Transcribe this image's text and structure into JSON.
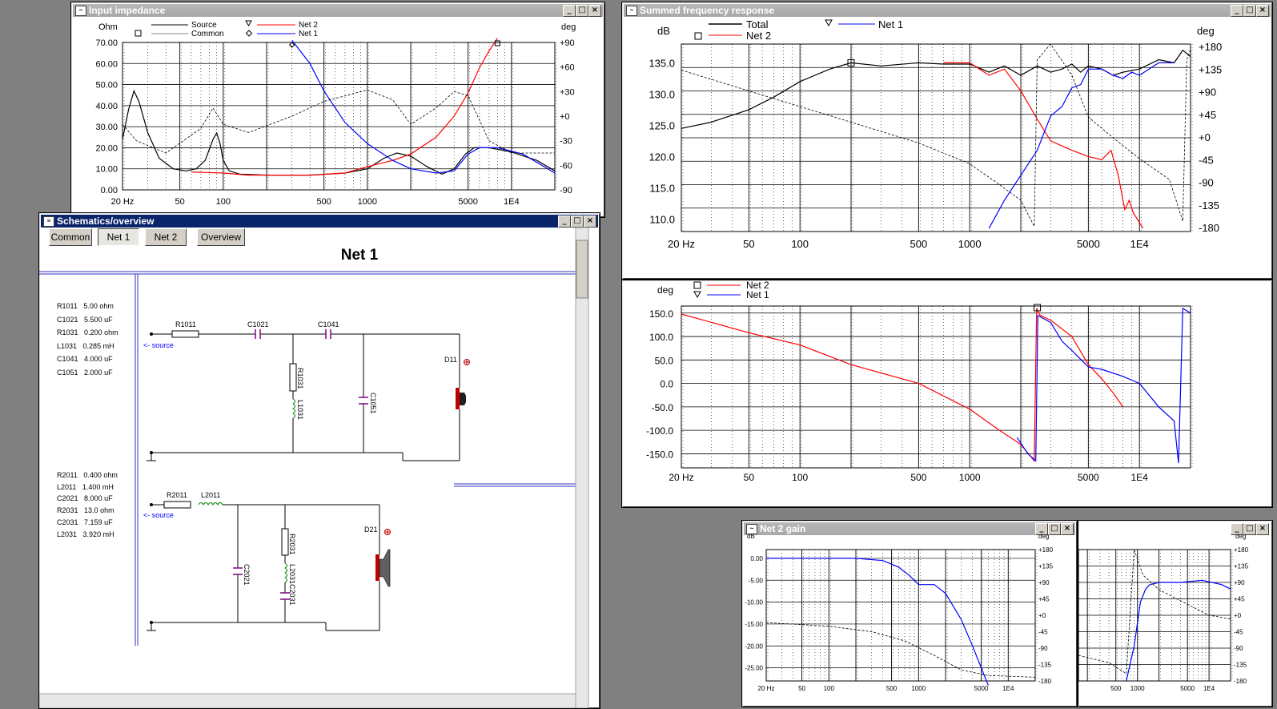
{
  "impedance": {
    "title": "Input impedance",
    "y_unit": "Ohm",
    "y2_unit": "deg",
    "legend": [
      "Source",
      "Common",
      "Net 2",
      "Net 1"
    ],
    "yticks": [
      "70.00",
      "60.00",
      "50.00",
      "40.00",
      "30.00",
      "20.00",
      "10.00",
      "0.00"
    ],
    "y2ticks": [
      "+90",
      "+60",
      "+30",
      "+0",
      "-30",
      "-60",
      "-90"
    ],
    "xticks": [
      "20 Hz",
      "50",
      "100",
      "500",
      "1000",
      "5000",
      "1E4"
    ]
  },
  "summed": {
    "title": "Summed frequency response",
    "y_unit": "dB",
    "y2_unit": "deg",
    "legend": [
      "Total",
      "Net 2",
      "Net 1"
    ],
    "yticks": [
      "135.0",
      "130.0",
      "125.0",
      "120.0",
      "115.0",
      "110.0"
    ],
    "y2ticks": [
      "+180",
      "+135",
      "+90",
      "+45",
      "+0",
      "-45",
      "-90",
      "-135",
      "-180"
    ],
    "xticks": [
      "20 Hz",
      "50",
      "100",
      "500",
      "1000",
      "5000",
      "1E4"
    ]
  },
  "phase": {
    "y_unit": "deg",
    "legend": [
      "Net 2",
      "Net 1"
    ],
    "yticks": [
      "150.0",
      "100.0",
      "50.0",
      "0.0",
      "-50.0",
      "-100.0",
      "-150.0"
    ],
    "xticks": [
      "20 Hz",
      "50",
      "100",
      "500",
      "1000",
      "5000",
      "1E4"
    ]
  },
  "schematic": {
    "title": "Schematics/overview",
    "buttons": [
      "Common",
      "Net 1",
      "Net 2",
      "Overview"
    ],
    "heading": "Net 1",
    "net1_values": [
      {
        "name": "R1011",
        "value": "5.00 ohm"
      },
      {
        "name": "C1021",
        "value": "5.500 uF"
      },
      {
        "name": "R1031",
        "value": "0.200 ohm"
      },
      {
        "name": "L1031",
        "value": "0.285 mH"
      },
      {
        "name": "C1041",
        "value": "4.000 uF"
      },
      {
        "name": "C1051",
        "value": "2.000 uF"
      }
    ],
    "net2_values": [
      {
        "name": "R2011",
        "value": "0.400 ohm"
      },
      {
        "name": "L2011",
        "value": "1.400 mH"
      },
      {
        "name": "C2021",
        "value": "8.000 uF"
      },
      {
        "name": "R2031",
        "value": "13.0 ohm"
      },
      {
        "name": "C2031",
        "value": "7.159 uF"
      },
      {
        "name": "L2031",
        "value": "3.920 mH"
      }
    ],
    "labels": {
      "r1011": "R1011",
      "c1021": "C1021",
      "c1041": "C1041",
      "r1031": "R1031",
      "l1031": "L1031",
      "c1051": "C1051",
      "d11": "D11",
      "r2011": "R2011",
      "l2011": "L2011",
      "c2021": "C2021",
      "r2031": "R2031",
      "l2031": "L2031",
      "c2031": "C2031",
      "d21": "D21",
      "source": "<- source"
    }
  },
  "net2gain": {
    "title": "Net 2 gain",
    "y_unit": "dB",
    "y2_unit": "deg",
    "yticks": [
      "0.00",
      "-5.00",
      "-10.00",
      "-15.00",
      "-20.00",
      "-25.00"
    ],
    "y2ticks": [
      "+180",
      "+135",
      "+90",
      "+45",
      "+0",
      "-45",
      "-90",
      "-135",
      "-180"
    ],
    "xticks": [
      "20 Hz",
      "50",
      "100",
      "500",
      "1000",
      "5000",
      "1E4"
    ]
  },
  "net1gain": {
    "y2_unit": "deg",
    "y2ticks": [
      "+180",
      "+135",
      "+90",
      "+45",
      "+0",
      "-45",
      "-90",
      "-135",
      "-180"
    ],
    "xticks": [
      "500",
      "1000",
      "5000",
      "1E4"
    ]
  },
  "colors": {
    "net1": "#0000ff",
    "net2": "#ff0000",
    "total": "#000000",
    "active_title": "#0a246a"
  }
}
